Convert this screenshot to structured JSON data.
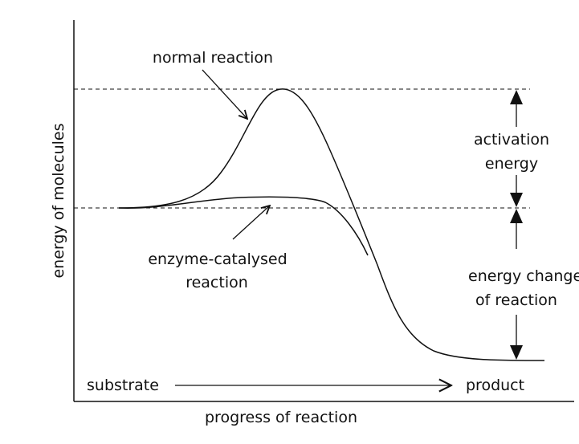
{
  "diagram": {
    "type": "energy-profile",
    "y_axis_label": "energy of molecules",
    "x_axis_label": "progress of reaction",
    "curves": {
      "normal": {
        "label": "normal reaction"
      },
      "enzyme": {
        "label_line1": "enzyme-catalysed",
        "label_line2": "reaction"
      }
    },
    "annotations": {
      "activation_energy": {
        "line1": "activation",
        "line2": "energy"
      },
      "energy_change": {
        "line1": "energy change",
        "line2": "of reaction"
      }
    },
    "substrate_label": "substrate",
    "product_label": "product",
    "colors": {
      "line": "#111111",
      "background": "#ffffff"
    }
  }
}
